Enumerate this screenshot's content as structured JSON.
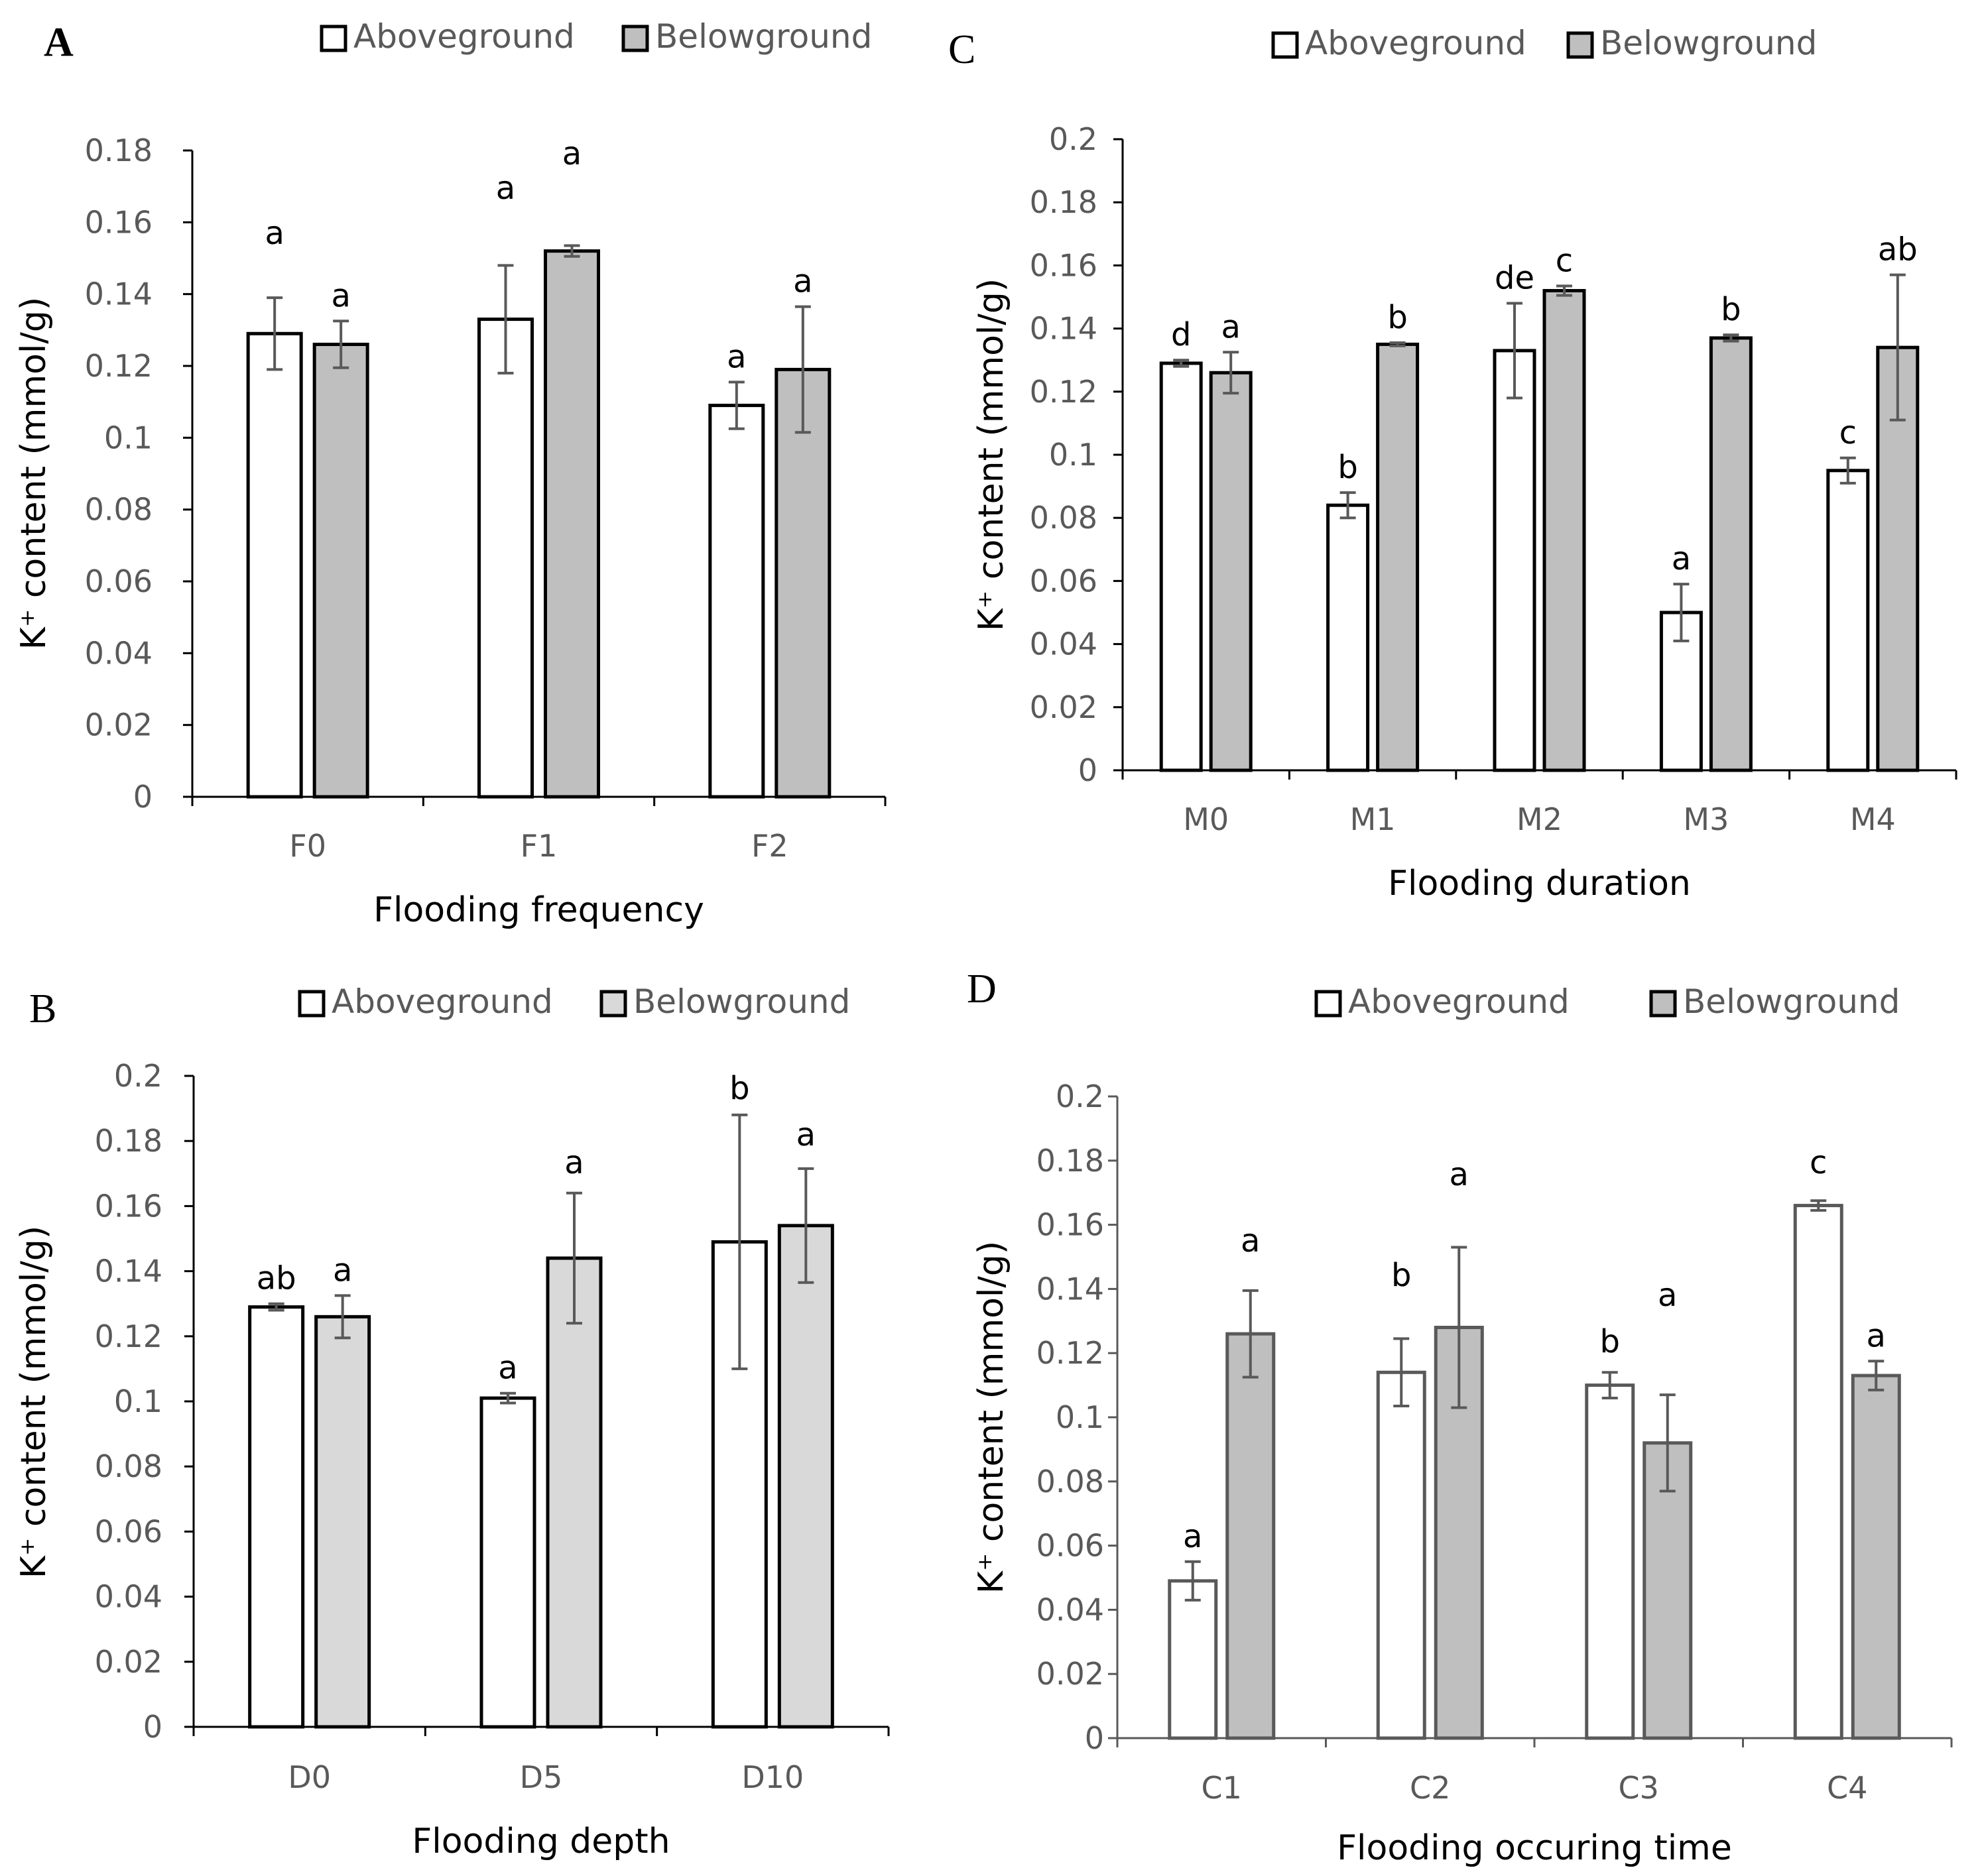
{
  "colors": {
    "above_fill": "#ffffff",
    "below_fill_dark": "#bfbfbf",
    "below_fill_light": "#d9d9d9",
    "axis": "#000000",
    "error": "#595959",
    "text_gray": "#595959"
  },
  "chart_data": [
    {
      "panel": "A",
      "type": "bar",
      "legend": [
        "Aboveground",
        "Belowground"
      ],
      "categories": [
        "F0",
        "F1",
        "F2"
      ],
      "series": [
        {
          "name": "Aboveground",
          "values": [
            0.129,
            0.133,
            0.109
          ],
          "errors": [
            0.01,
            0.015,
            0.0065
          ],
          "letters": [
            "a",
            "a",
            "a"
          ]
        },
        {
          "name": "Belowground",
          "values": [
            0.126,
            0.152,
            0.119
          ],
          "errors": [
            0.0065,
            0.0015,
            0.0175
          ],
          "letters": [
            "a",
            "a",
            "a"
          ]
        }
      ],
      "xlabel": "Flooding frequency",
      "ylabel": "K⁺ content (mmol/g)",
      "ylim": [
        0,
        0.18
      ],
      "ytick_labels": [
        "0",
        "0.02",
        "0.04",
        "0.06",
        "0.08",
        "0.1",
        "0.12",
        "0.14",
        "0.16",
        "0.18"
      ]
    },
    {
      "panel": "B",
      "type": "bar",
      "legend": [
        "Aboveground",
        "Belowground"
      ],
      "categories": [
        "D0",
        "D5",
        "D10"
      ],
      "series": [
        {
          "name": "Aboveground",
          "values": [
            0.129,
            0.101,
            0.149
          ],
          "errors": [
            0.001,
            0.0015,
            0.039
          ],
          "letters": [
            "ab",
            "a",
            "b"
          ]
        },
        {
          "name": "Belowground",
          "values": [
            0.126,
            0.144,
            0.154
          ],
          "errors": [
            0.0065,
            0.02,
            0.0175
          ],
          "letters": [
            "a",
            "a",
            "a"
          ]
        }
      ],
      "xlabel": "Flooding depth",
      "ylabel": "K⁺ content (mmol/g)",
      "ylim": [
        0,
        0.2
      ],
      "ytick_labels": [
        "0",
        "0.02",
        "0.04",
        "0.06",
        "0.08",
        "0.1",
        "0.12",
        "0.14",
        "0.16",
        "0.18",
        "0.2"
      ]
    },
    {
      "panel": "C",
      "type": "bar",
      "legend": [
        "Aboveground",
        "Belowground"
      ],
      "categories": [
        "M0",
        "M1",
        "M2",
        "M3",
        "M4"
      ],
      "series": [
        {
          "name": "Aboveground",
          "values": [
            0.129,
            0.084,
            0.133,
            0.05,
            0.095
          ],
          "errors": [
            0.001,
            0.004,
            0.015,
            0.009,
            0.004
          ],
          "letters": [
            "d",
            "b",
            "de",
            "a",
            "c"
          ]
        },
        {
          "name": "Belowground",
          "values": [
            0.126,
            0.135,
            0.152,
            0.137,
            0.134
          ],
          "errors": [
            0.0065,
            0.0005,
            0.0015,
            0.001,
            0.023
          ],
          "letters": [
            "a",
            "b",
            "c",
            "b",
            "ab"
          ]
        }
      ],
      "xlabel": "Flooding duration",
      "ylabel": "K⁺ content (mmol/g)",
      "ylim": [
        0,
        0.2
      ],
      "ytick_labels": [
        "0",
        "0.02",
        "0.04",
        "0.06",
        "0.08",
        "0.1",
        "0.12",
        "0.14",
        "0.16",
        "0.18",
        "0.2"
      ]
    },
    {
      "panel": "D",
      "type": "bar",
      "legend": [
        "Aboveground",
        "Belowground"
      ],
      "categories": [
        "C1",
        "C2",
        "C3",
        "C4"
      ],
      "series": [
        {
          "name": "Aboveground",
          "values": [
            0.049,
            0.114,
            0.11,
            0.166
          ],
          "errors": [
            0.006,
            0.0105,
            0.004,
            0.0015
          ],
          "letters": [
            "a",
            "b",
            "b",
            "c"
          ]
        },
        {
          "name": "Belowground",
          "values": [
            0.126,
            0.128,
            0.092,
            0.113
          ],
          "errors": [
            0.0135,
            0.025,
            0.015,
            0.0045
          ],
          "letters": [
            "a",
            "a",
            "a",
            "a"
          ]
        }
      ],
      "xlabel": "Flooding occuring time",
      "ylabel": "K⁺ content (mmol/g)",
      "ylim": [
        0,
        0.2
      ],
      "ytick_labels": [
        "0",
        "0.02",
        "0.04",
        "0.06",
        "0.08",
        "0.1",
        "0.12",
        "0.14",
        "0.16",
        "0.18",
        "0.2"
      ]
    }
  ]
}
